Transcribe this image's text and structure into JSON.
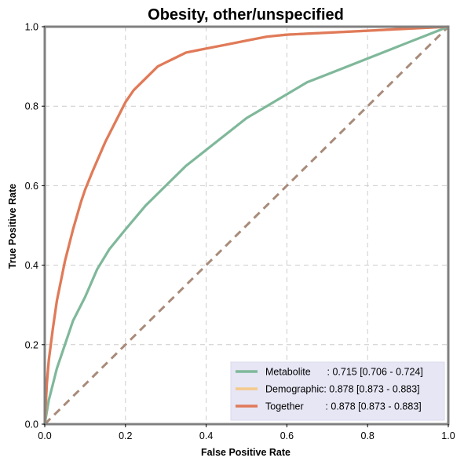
{
  "chart_data": {
    "type": "line",
    "title": "Obesity, other/unspecified",
    "xlabel": "False Positive Rate",
    "ylabel": "True Positive Rate",
    "xlim": [
      0,
      1
    ],
    "ylim": [
      0,
      1
    ],
    "xticks": [
      "0.0",
      "0.2",
      "0.4",
      "0.6",
      "0.8",
      "1.0"
    ],
    "yticks": [
      "0.0",
      "0.2",
      "0.4",
      "0.6",
      "0.8",
      "1.0"
    ],
    "grid": true,
    "legend_position": "lower-right",
    "series": [
      {
        "name": "Metabolite",
        "legend_label": "Metabolite      : 0.715 [0.706 - 0.724]",
        "color": "#7fb89a",
        "x": [
          0,
          0.01,
          0.02,
          0.03,
          0.05,
          0.07,
          0.1,
          0.13,
          0.16,
          0.2,
          0.25,
          0.3,
          0.35,
          0.4,
          0.45,
          0.5,
          0.55,
          0.6,
          0.65,
          0.7,
          0.75,
          0.8,
          0.85,
          0.9,
          0.95,
          1.0
        ],
        "y": [
          0,
          0.06,
          0.1,
          0.14,
          0.2,
          0.26,
          0.32,
          0.39,
          0.44,
          0.49,
          0.55,
          0.6,
          0.65,
          0.69,
          0.73,
          0.77,
          0.8,
          0.83,
          0.86,
          0.88,
          0.9,
          0.92,
          0.94,
          0.96,
          0.98,
          1.0
        ]
      },
      {
        "name": "Demographic",
        "legend_label": "Demographic: 0.878 [0.873 - 0.883]",
        "color": "#f5c98a",
        "x": [
          0,
          0.005,
          0.01,
          0.02,
          0.03,
          0.05,
          0.07,
          0.09,
          0.1,
          0.12,
          0.15,
          0.18,
          0.2,
          0.22,
          0.25,
          0.28,
          0.3,
          0.32,
          0.35,
          0.4,
          0.45,
          0.5,
          0.55,
          0.6,
          0.7,
          0.8,
          0.9,
          1.0
        ],
        "y": [
          0,
          0.1,
          0.16,
          0.24,
          0.31,
          0.41,
          0.49,
          0.56,
          0.59,
          0.64,
          0.71,
          0.77,
          0.81,
          0.84,
          0.87,
          0.9,
          0.91,
          0.92,
          0.935,
          0.945,
          0.955,
          0.965,
          0.975,
          0.98,
          0.985,
          0.99,
          0.995,
          1.0
        ]
      },
      {
        "name": "Together",
        "legend_label": "Together        : 0.878 [0.873 - 0.883]",
        "color": "#e07a5a",
        "x": [
          0,
          0.005,
          0.01,
          0.02,
          0.03,
          0.05,
          0.07,
          0.09,
          0.1,
          0.12,
          0.15,
          0.18,
          0.2,
          0.22,
          0.25,
          0.28,
          0.3,
          0.32,
          0.35,
          0.4,
          0.45,
          0.5,
          0.55,
          0.6,
          0.7,
          0.8,
          0.9,
          1.0
        ],
        "y": [
          0,
          0.1,
          0.16,
          0.24,
          0.31,
          0.41,
          0.49,
          0.56,
          0.59,
          0.64,
          0.71,
          0.77,
          0.81,
          0.84,
          0.87,
          0.9,
          0.91,
          0.92,
          0.935,
          0.945,
          0.955,
          0.965,
          0.975,
          0.98,
          0.985,
          0.99,
          0.995,
          1.0
        ]
      }
    ],
    "reference_line": {
      "style": "dashed",
      "color": "#a88b7a",
      "x": [
        0,
        1
      ],
      "y": [
        0,
        1
      ]
    },
    "legend_background": "#e6e6f5",
    "frame_color": "#808080",
    "grid_color": "#cccccc"
  }
}
